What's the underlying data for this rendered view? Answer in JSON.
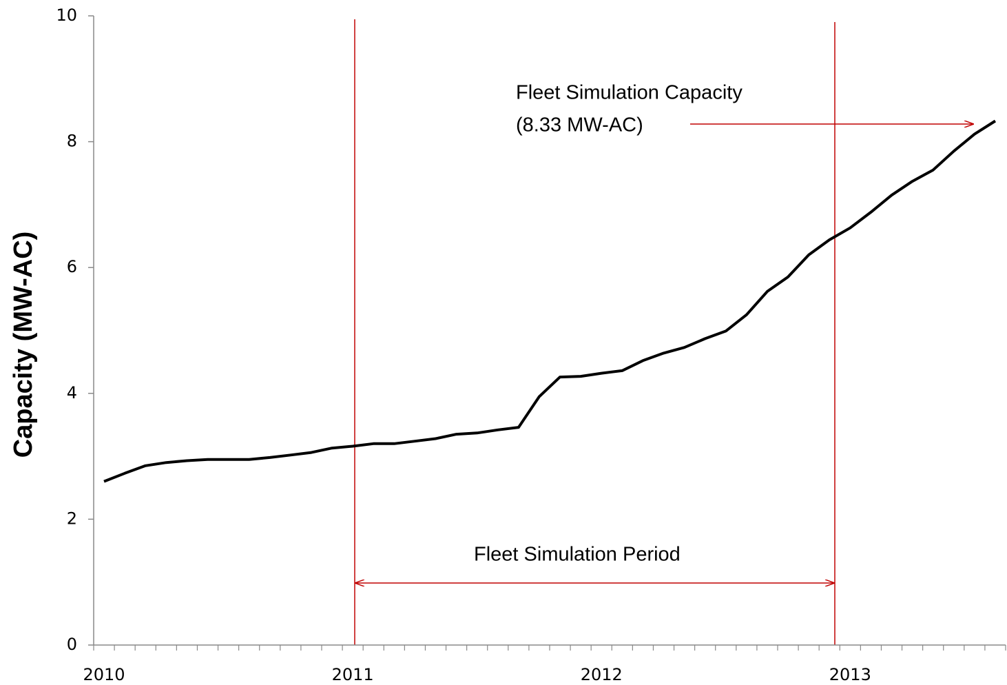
{
  "chart_data": {
    "type": "line",
    "y_label": "Capacity (MW-AC)",
    "annotations": [
      "Fleet Simulation Capacity",
      "(8.33 MW-AC)",
      "Fleet Simulation Period"
    ],
    "categories": [
      "2010",
      null,
      null,
      null,
      null,
      null,
      null,
      null,
      null,
      null,
      null,
      null,
      "2011",
      null,
      null,
      null,
      null,
      null,
      null,
      null,
      null,
      null,
      null,
      null,
      "2012",
      null,
      null,
      null,
      null,
      null,
      null,
      null,
      null,
      null,
      null,
      null,
      "2013",
      null,
      null,
      null,
      null,
      null,
      null,
      null
    ],
    "series": [
      {
        "name": "Capacity",
        "color": "#000000",
        "values": [
          2.6,
          2.73,
          2.85,
          2.9,
          2.93,
          2.95,
          2.95,
          2.95,
          2.98,
          3.02,
          3.06,
          3.13,
          3.16,
          3.2,
          3.2,
          3.24,
          3.28,
          3.35,
          3.37,
          3.42,
          3.46,
          3.95,
          4.26,
          4.27,
          4.32,
          4.36,
          4.52,
          4.64,
          4.73,
          4.87,
          4.99,
          5.25,
          5.62,
          5.85,
          6.2,
          6.44,
          6.63,
          6.88,
          7.15,
          7.37,
          7.55,
          7.85,
          8.12,
          8.33
        ]
      }
    ],
    "ylim": [
      0,
      10
    ],
    "yticks": [
      0,
      2,
      4,
      6,
      8,
      10
    ],
    "grid": false
  }
}
